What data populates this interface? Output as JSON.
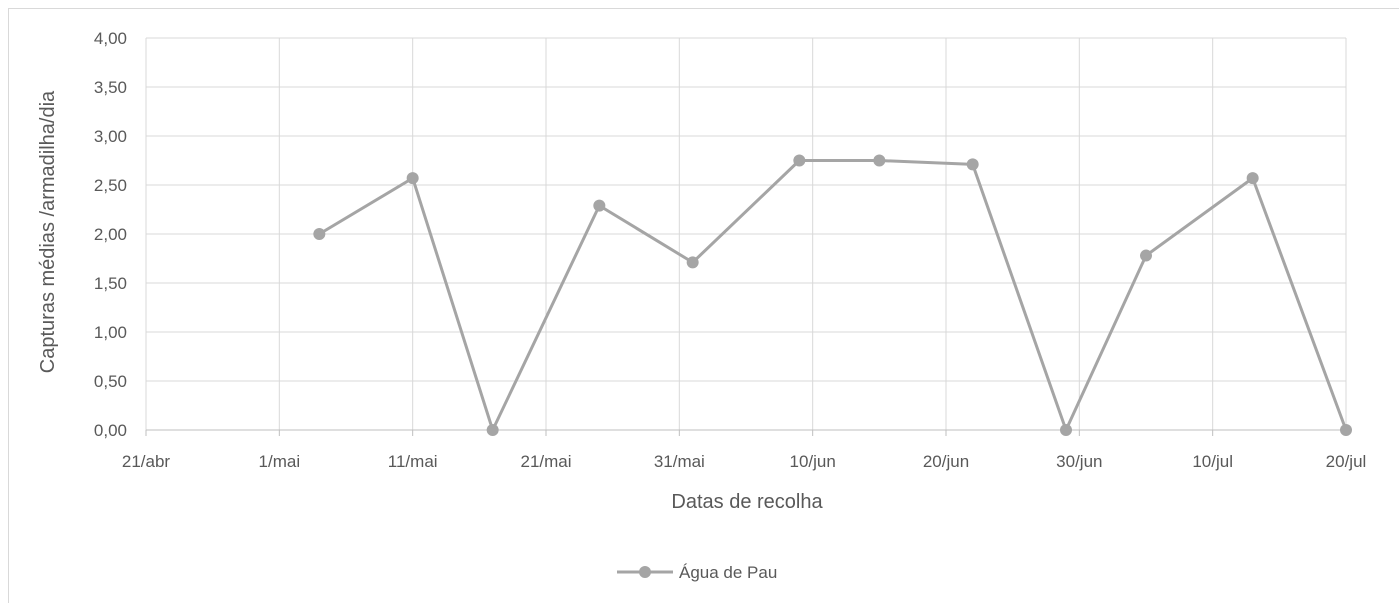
{
  "chart_data": {
    "type": "line",
    "title": "",
    "xlabel": "Datas de recolha",
    "ylabel": "Capturas médias /armadilha/dia",
    "x_ticks": [
      "21/abr",
      "1/mai",
      "11/mai",
      "21/mai",
      "31/mai",
      "10/jun",
      "20/jun",
      "30/jun",
      "10/jul",
      "20/jul"
    ],
    "xlim": [
      "21/abr",
      "20/jul"
    ],
    "y_ticks": [
      "0,00",
      "0,50",
      "1,00",
      "1,50",
      "2,00",
      "2,50",
      "3,00",
      "3,50",
      "4,00"
    ],
    "ylim": [
      0,
      4
    ],
    "grid": true,
    "legend": "bottom",
    "series": [
      {
        "name": "Água de Pau",
        "color": "#a5a5a5",
        "marker": "circle",
        "points": [
          {
            "x": "04/mai",
            "y": 2.0
          },
          {
            "x": "11/mai",
            "y": 2.57
          },
          {
            "x": "17/mai",
            "y": 0.0
          },
          {
            "x": "25/mai",
            "y": 2.29
          },
          {
            "x": "01/jun",
            "y": 1.71
          },
          {
            "x": "09/jun",
            "y": 2.75
          },
          {
            "x": "15/jun",
            "y": 2.75
          },
          {
            "x": "22/jun",
            "y": 2.71
          },
          {
            "x": "29/jun",
            "y": 0.0
          },
          {
            "x": "05/jul",
            "y": 1.78
          },
          {
            "x": "13/jul",
            "y": 2.57
          },
          {
            "x": "20/jul",
            "y": 0.0
          }
        ]
      }
    ]
  }
}
